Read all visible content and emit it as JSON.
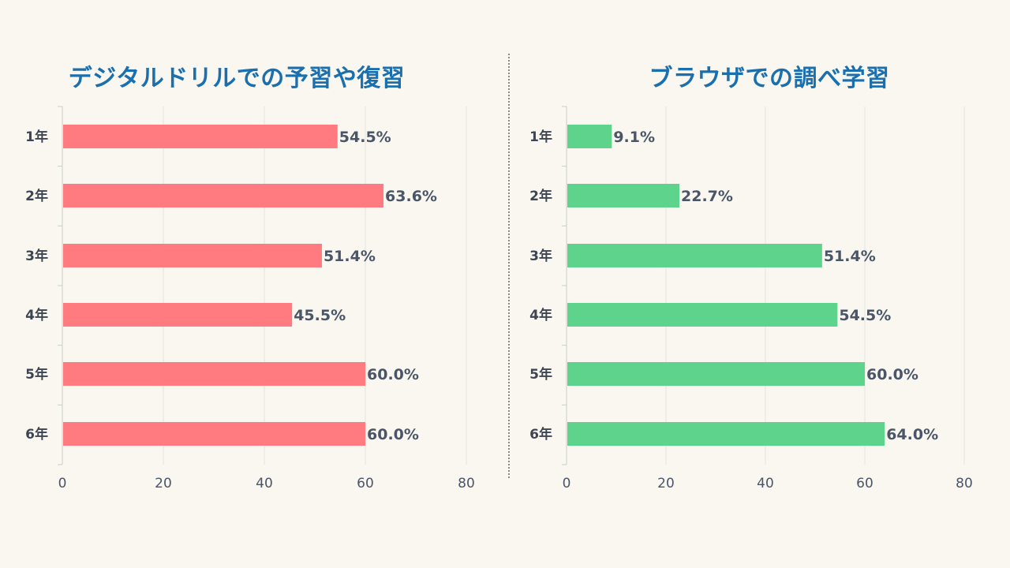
{
  "colors": {
    "background": "#f9f7f0",
    "title": "#1a6fae",
    "left_bar": "#ff7b7f",
    "right_bar": "#5dd38b",
    "grid": "#e4e6e2",
    "text": "#4a5568"
  },
  "chart_data": [
    {
      "type": "bar",
      "orientation": "horizontal",
      "title": "デジタルドリルでの予習や復習",
      "categories": [
        "1年",
        "2年",
        "3年",
        "4年",
        "5年",
        "6年"
      ],
      "values": [
        54.5,
        63.6,
        51.4,
        45.5,
        60.0,
        60.0
      ],
      "value_labels": [
        "54.5%",
        "63.6%",
        "51.4%",
        "45.5%",
        "60.0%",
        "60.0%"
      ],
      "xlim": [
        0,
        80
      ],
      "xticks": [
        "0",
        "20",
        "40",
        "60",
        "80"
      ],
      "grid": true,
      "xlabel": "",
      "ylabel": ""
    },
    {
      "type": "bar",
      "orientation": "horizontal",
      "title": "ブラウザでの調べ学習",
      "categories": [
        "1年",
        "2年",
        "3年",
        "4年",
        "5年",
        "6年"
      ],
      "values": [
        9.1,
        22.7,
        51.4,
        54.5,
        60.0,
        64.0
      ],
      "value_labels": [
        "9.1%",
        "22.7%",
        "51.4%",
        "54.5%",
        "60.0%",
        "64.0%"
      ],
      "xlim": [
        0,
        80
      ],
      "xticks": [
        "0",
        "20",
        "40",
        "60",
        "80"
      ],
      "grid": true,
      "xlabel": "",
      "ylabel": ""
    }
  ]
}
